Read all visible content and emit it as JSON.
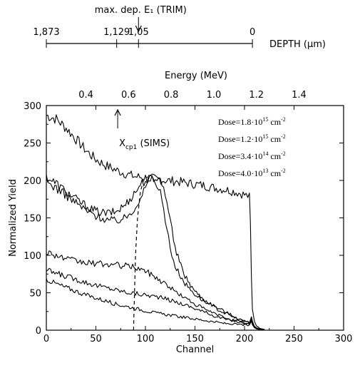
{
  "chart_data": {
    "type": "line",
    "xlabel": "Channel",
    "ylabel": "Normalized Yield",
    "xlim": [
      0,
      300
    ],
    "ylim": [
      0,
      300
    ],
    "x_ticks": [
      0,
      50,
      100,
      150,
      200,
      250,
      300
    ],
    "y_ticks": [
      0,
      50,
      100,
      150,
      200,
      250,
      300
    ],
    "top_axis": {
      "label": "Energy (MeV)",
      "ticks": [
        {
          "label": "0.4",
          "channel": 40
        },
        {
          "label": "0.6",
          "channel": 83
        },
        {
          "label": "0.8",
          "channel": 126
        },
        {
          "label": "1.0",
          "channel": 169
        },
        {
          "label": "1.2",
          "channel": 212
        },
        {
          "label": "1.4",
          "channel": 255
        }
      ]
    },
    "depth_axis": {
      "label": "DEPTH (µm)",
      "ticks": [
        {
          "label": "1,873",
          "channel": 0
        },
        {
          "label": "1,129",
          "channel": 71
        },
        {
          "label": "1,05",
          "channel": 93
        },
        {
          "label": "0",
          "channel": 208
        }
      ],
      "marker_label": "max. dep. E₁ (TRIM)",
      "marker_channel": 93
    },
    "annotation": {
      "text": "X",
      "subscript": "cp1",
      "suffix": " (SIMS)",
      "arrow_channel": 72
    },
    "dashed_line": {
      "x": [
        88,
        89,
        90,
        92,
        95,
        98,
        102
      ],
      "y": [
        0,
        50,
        100,
        150,
        185,
        200,
        205
      ]
    },
    "legend": [
      {
        "base": "Dose=1.8·10",
        "exp": "15",
        "unit": " cm",
        "unit_exp": "-2"
      },
      {
        "base": "Dose=1.2·10",
        "exp": "15",
        "unit": " cm",
        "unit_exp": "-2"
      },
      {
        "base": "Dose=3.4·10",
        "exp": "14",
        "unit": " cm",
        "unit_exp": "-2"
      },
      {
        "base": "Dose=4.0·10",
        "exp": "13",
        "unit": " cm",
        "unit_exp": "-2"
      }
    ],
    "series": [
      {
        "x": [
          0,
          10,
          20,
          30,
          40,
          50,
          60,
          70,
          80,
          90,
          100,
          110,
          120,
          130,
          140,
          150,
          160,
          170,
          180,
          190,
          200,
          205,
          206,
          207,
          208,
          210,
          212,
          215,
          220
        ],
        "y": [
          287,
          282,
          270,
          255,
          240,
          228,
          220,
          214,
          209,
          205,
          204,
          202,
          200,
          199,
          197,
          195,
          193,
          190,
          188,
          185,
          181,
          178,
          140,
          70,
          28,
          12,
          6,
          3,
          1
        ]
      },
      {
        "x": [
          0,
          10,
          20,
          30,
          40,
          50,
          60,
          70,
          80,
          90,
          95,
          100,
          105,
          110,
          115,
          120,
          125,
          130,
          140,
          150,
          160,
          170,
          180,
          190,
          200,
          205,
          207,
          208,
          210,
          212,
          215,
          220
        ],
        "y": [
          205,
          196,
          185,
          175,
          166,
          159,
          156,
          158,
          168,
          185,
          195,
          200,
          202,
          200,
          185,
          150,
          110,
          85,
          62,
          48,
          38,
          30,
          23,
          17,
          12,
          10,
          18,
          12,
          5,
          3,
          2,
          1
        ]
      },
      {
        "x": [
          0,
          10,
          20,
          30,
          40,
          50,
          60,
          70,
          80,
          90,
          95,
          100,
          105,
          110,
          115,
          120,
          125,
          130,
          140,
          150,
          160,
          170,
          180,
          190,
          200,
          205,
          207,
          208,
          210,
          212,
          215,
          220
        ],
        "y": [
          198,
          190,
          180,
          170,
          160,
          153,
          148,
          146,
          150,
          165,
          178,
          190,
          200,
          203,
          200,
          185,
          148,
          108,
          72,
          52,
          40,
          32,
          25,
          18,
          12,
          10,
          17,
          11,
          5,
          3,
          2,
          1
        ]
      },
      {
        "x": [
          0,
          10,
          20,
          30,
          40,
          50,
          60,
          70,
          80,
          90,
          100,
          110,
          120,
          130,
          140,
          150,
          160,
          170,
          180,
          190,
          200,
          205,
          207,
          208,
          210,
          212,
          215,
          220
        ],
        "y": [
          105,
          100,
          95,
          92,
          90,
          89,
          88,
          87,
          86,
          84,
          79,
          71,
          62,
          52,
          43,
          35,
          28,
          22,
          17,
          13,
          10,
          9,
          16,
          10,
          5,
          3,
          2,
          1
        ]
      },
      {
        "x": [
          0,
          10,
          20,
          30,
          40,
          50,
          60,
          70,
          80,
          90,
          100,
          110,
          120,
          130,
          140,
          150,
          160,
          170,
          180,
          190,
          200,
          205,
          207,
          208,
          210,
          212,
          215,
          220
        ],
        "y": [
          80,
          76,
          72,
          68,
          64,
          60,
          57,
          54,
          51,
          49,
          47,
          45,
          42,
          38,
          34,
          29,
          24,
          19,
          15,
          12,
          9,
          8,
          14,
          9,
          4,
          2,
          1,
          1
        ]
      },
      {
        "x": [
          0,
          10,
          20,
          30,
          40,
          50,
          60,
          70,
          80,
          90,
          100,
          110,
          120,
          130,
          140,
          150,
          160,
          170,
          180,
          190,
          200,
          205,
          207,
          208,
          210,
          212,
          215,
          220
        ],
        "y": [
          68,
          62,
          57,
          52,
          47,
          43,
          39,
          35,
          32,
          29,
          26,
          23,
          21,
          19,
          17,
          15,
          13,
          11,
          9,
          8,
          7,
          6,
          12,
          7,
          3,
          2,
          1,
          1
        ]
      }
    ]
  }
}
